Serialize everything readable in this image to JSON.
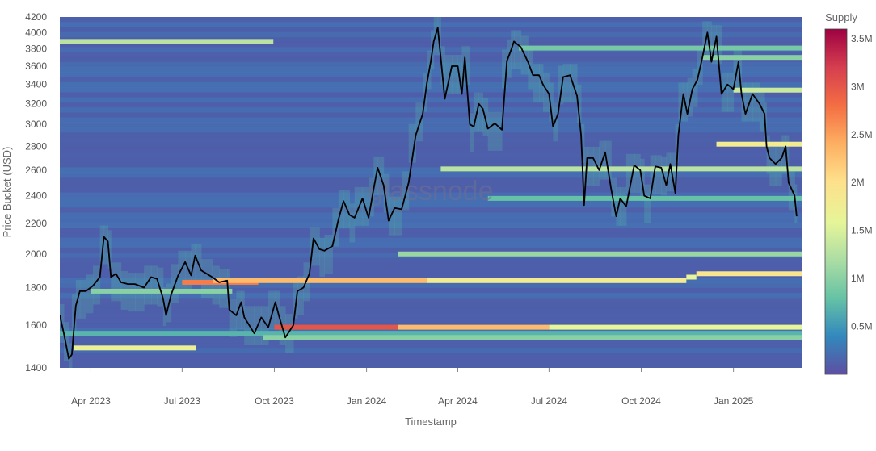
{
  "chart_data": {
    "type": "heatmap",
    "title": "",
    "xlabel": "Timestamp",
    "ylabel": "Price Bucket (USD)",
    "watermark": "glassnode",
    "x_ticks": [
      "Apr 2023",
      "Jul 2023",
      "Oct 2023",
      "Jan 2024",
      "Apr 2024",
      "Jul 2024",
      "Oct 2024",
      "Jan 2025"
    ],
    "x_range": [
      "2023-03-01",
      "2025-03-10"
    ],
    "y_ticks": [
      1400,
      1600,
      1800,
      2000,
      2200,
      2400,
      2600,
      2800,
      3000,
      3200,
      3400,
      3600,
      3800,
      4000,
      4200
    ],
    "y_scale": "log",
    "y_range": [
      1400,
      4200
    ],
    "colorbar": {
      "title": "Supply",
      "range": [
        0,
        3600000
      ],
      "ticks": [
        {
          "value": 500000,
          "label": "0.5M"
        },
        {
          "value": 1000000,
          "label": "1M"
        },
        {
          "value": 1500000,
          "label": "1.5M"
        },
        {
          "value": 2000000,
          "label": "2M"
        },
        {
          "value": 2500000,
          "label": "2.5M"
        },
        {
          "value": 3000000,
          "label": "3M"
        },
        {
          "value": 3500000,
          "label": "3.5M"
        }
      ],
      "colors": [
        "#5e4fa2",
        "#3288bd",
        "#66c2a5",
        "#abdda4",
        "#e6f598",
        "#fee08b",
        "#fdae61",
        "#f46d43",
        "#d53e4f",
        "#9e0142"
      ]
    },
    "supply_bands": [
      {
        "start": "2023-03-01",
        "end": "2025-03-10",
        "price": 1560,
        "supply": 700000
      },
      {
        "start": "2023-03-01",
        "end": "2023-09-30",
        "price": 3890,
        "supply": 1300000
      },
      {
        "start": "2023-03-15",
        "end": "2023-07-15",
        "price": 1490,
        "supply": 1700000
      },
      {
        "start": "2023-04-01",
        "end": "2023-08-20",
        "price": 1780,
        "supply": 1000000
      },
      {
        "start": "2023-07-01",
        "end": "2023-09-15",
        "price": 1830,
        "supply": 2700000
      },
      {
        "start": "2023-08-01",
        "end": "2024-03-01",
        "price": 1840,
        "supply": 2300000
      },
      {
        "start": "2024-03-01",
        "end": "2024-11-15",
        "price": 1840,
        "supply": 1800000
      },
      {
        "start": "2024-11-15",
        "end": "2024-11-25",
        "price": 1860,
        "supply": 1600000
      },
      {
        "start": "2024-11-25",
        "end": "2025-03-10",
        "price": 1880,
        "supply": 1900000
      },
      {
        "start": "2023-10-01",
        "end": "2024-02-01",
        "price": 1590,
        "supply": 3000000
      },
      {
        "start": "2024-02-01",
        "end": "2024-07-01",
        "price": 1590,
        "supply": 2300000
      },
      {
        "start": "2024-07-01",
        "end": "2025-03-10",
        "price": 1590,
        "supply": 1600000
      },
      {
        "start": "2023-09-20",
        "end": "2025-03-10",
        "price": 1540,
        "supply": 1000000
      },
      {
        "start": "2024-02-01",
        "end": "2025-03-10",
        "price": 2000,
        "supply": 1100000
      },
      {
        "start": "2024-03-15",
        "end": "2025-03-10",
        "price": 2610,
        "supply": 1300000
      },
      {
        "start": "2024-06-01",
        "end": "2025-03-10",
        "price": 3810,
        "supply": 900000
      },
      {
        "start": "2024-12-15",
        "end": "2025-03-10",
        "price": 2820,
        "supply": 1800000
      },
      {
        "start": "2024-12-01",
        "end": "2025-03-10",
        "price": 3700,
        "supply": 1000000
      },
      {
        "start": "2025-01-01",
        "end": "2025-03-10",
        "price": 3340,
        "supply": 1400000
      },
      {
        "start": "2024-05-01",
        "end": "2025-03-10",
        "price": 2380,
        "supply": 800000
      }
    ],
    "price_line": {
      "name": "Price",
      "color": "#000000",
      "points": [
        [
          "2023-03-01",
          1650
        ],
        [
          "2023-03-05",
          1560
        ],
        [
          "2023-03-10",
          1440
        ],
        [
          "2023-03-13",
          1460
        ],
        [
          "2023-03-17",
          1700
        ],
        [
          "2023-03-21",
          1780
        ],
        [
          "2023-03-27",
          1780
        ],
        [
          "2023-04-03",
          1810
        ],
        [
          "2023-04-10",
          1860
        ],
        [
          "2023-04-14",
          2110
        ],
        [
          "2023-04-18",
          2080
        ],
        [
          "2023-04-21",
          1860
        ],
        [
          "2023-04-26",
          1880
        ],
        [
          "2023-05-01",
          1830
        ],
        [
          "2023-05-08",
          1820
        ],
        [
          "2023-05-15",
          1820
        ],
        [
          "2023-05-24",
          1800
        ],
        [
          "2023-05-31",
          1860
        ],
        [
          "2023-06-06",
          1850
        ],
        [
          "2023-06-12",
          1740
        ],
        [
          "2023-06-15",
          1650
        ],
        [
          "2023-06-20",
          1760
        ],
        [
          "2023-06-27",
          1870
        ],
        [
          "2023-07-04",
          1950
        ],
        [
          "2023-07-10",
          1870
        ],
        [
          "2023-07-14",
          1990
        ],
        [
          "2023-07-20",
          1900
        ],
        [
          "2023-07-31",
          1860
        ],
        [
          "2023-08-07",
          1830
        ],
        [
          "2023-08-15",
          1840
        ],
        [
          "2023-08-17",
          1680
        ],
        [
          "2023-08-24",
          1650
        ],
        [
          "2023-08-29",
          1720
        ],
        [
          "2023-09-01",
          1640
        ],
        [
          "2023-09-11",
          1560
        ],
        [
          "2023-09-18",
          1640
        ],
        [
          "2023-09-25",
          1590
        ],
        [
          "2023-10-02",
          1720
        ],
        [
          "2023-10-06",
          1640
        ],
        [
          "2023-10-12",
          1540
        ],
        [
          "2023-10-20",
          1600
        ],
        [
          "2023-10-24",
          1780
        ],
        [
          "2023-10-30",
          1800
        ],
        [
          "2023-11-05",
          1880
        ],
        [
          "2023-11-09",
          2100
        ],
        [
          "2023-11-15",
          2030
        ],
        [
          "2023-11-20",
          2020
        ],
        [
          "2023-11-28",
          2050
        ],
        [
          "2023-12-04",
          2230
        ],
        [
          "2023-12-09",
          2360
        ],
        [
          "2023-12-15",
          2260
        ],
        [
          "2023-12-20",
          2240
        ],
        [
          "2023-12-28",
          2380
        ],
        [
          "2024-01-03",
          2240
        ],
        [
          "2024-01-08",
          2450
        ],
        [
          "2024-01-12",
          2620
        ],
        [
          "2024-01-18",
          2480
        ],
        [
          "2024-01-23",
          2220
        ],
        [
          "2024-01-29",
          2310
        ],
        [
          "2024-02-05",
          2300
        ],
        [
          "2024-02-12",
          2500
        ],
        [
          "2024-02-19",
          2900
        ],
        [
          "2024-02-26",
          3100
        ],
        [
          "2024-03-01",
          3400
        ],
        [
          "2024-03-05",
          3650
        ],
        [
          "2024-03-08",
          3890
        ],
        [
          "2024-03-12",
          4060
        ],
        [
          "2024-03-15",
          3700
        ],
        [
          "2024-03-19",
          3250
        ],
        [
          "2024-03-26",
          3600
        ],
        [
          "2024-04-01",
          3600
        ],
        [
          "2024-04-05",
          3300
        ],
        [
          "2024-04-08",
          3700
        ],
        [
          "2024-04-13",
          3000
        ],
        [
          "2024-04-17",
          2980
        ],
        [
          "2024-04-22",
          3200
        ],
        [
          "2024-04-26",
          3150
        ],
        [
          "2024-05-01",
          2960
        ],
        [
          "2024-05-08",
          3010
        ],
        [
          "2024-05-15",
          2950
        ],
        [
          "2024-05-20",
          3660
        ],
        [
          "2024-05-24",
          3780
        ],
        [
          "2024-05-27",
          3890
        ],
        [
          "2024-06-03",
          3820
        ],
        [
          "2024-06-10",
          3650
        ],
        [
          "2024-06-15",
          3500
        ],
        [
          "2024-06-21",
          3500
        ],
        [
          "2024-06-25",
          3400
        ],
        [
          "2024-07-01",
          3300
        ],
        [
          "2024-07-05",
          2980
        ],
        [
          "2024-07-10",
          3100
        ],
        [
          "2024-07-15",
          3480
        ],
        [
          "2024-07-22",
          3500
        ],
        [
          "2024-07-29",
          3280
        ],
        [
          "2024-08-02",
          2900
        ],
        [
          "2024-08-05",
          2330
        ],
        [
          "2024-08-08",
          2700
        ],
        [
          "2024-08-14",
          2700
        ],
        [
          "2024-08-20",
          2600
        ],
        [
          "2024-08-26",
          2750
        ],
        [
          "2024-09-01",
          2450
        ],
        [
          "2024-09-06",
          2250
        ],
        [
          "2024-09-10",
          2380
        ],
        [
          "2024-09-16",
          2320
        ],
        [
          "2024-09-24",
          2640
        ],
        [
          "2024-09-30",
          2600
        ],
        [
          "2024-10-04",
          2400
        ],
        [
          "2024-10-10",
          2380
        ],
        [
          "2024-10-15",
          2630
        ],
        [
          "2024-10-21",
          2620
        ],
        [
          "2024-10-26",
          2480
        ],
        [
          "2024-10-30",
          2650
        ],
        [
          "2024-11-04",
          2420
        ],
        [
          "2024-11-07",
          2900
        ],
        [
          "2024-11-12",
          3300
        ],
        [
          "2024-11-16",
          3100
        ],
        [
          "2024-11-21",
          3350
        ],
        [
          "2024-11-26",
          3450
        ],
        [
          "2024-12-01",
          3700
        ],
        [
          "2024-12-06",
          4000
        ],
        [
          "2024-12-10",
          3650
        ],
        [
          "2024-12-15",
          3950
        ],
        [
          "2024-12-20",
          3300
        ],
        [
          "2024-12-26",
          3400
        ],
        [
          "2025-01-01",
          3350
        ],
        [
          "2025-01-06",
          3650
        ],
        [
          "2025-01-09",
          3300
        ],
        [
          "2025-01-13",
          3100
        ],
        [
          "2025-01-20",
          3300
        ],
        [
          "2025-01-27",
          3200
        ],
        [
          "2025-02-01",
          3100
        ],
        [
          "2025-02-03",
          2800
        ],
        [
          "2025-02-06",
          2700
        ],
        [
          "2025-02-12",
          2650
        ],
        [
          "2025-02-18",
          2700
        ],
        [
          "2025-02-22",
          2800
        ],
        [
          "2025-02-25",
          2500
        ],
        [
          "2025-03-03",
          2400
        ],
        [
          "2025-03-05",
          2250
        ]
      ]
    }
  }
}
